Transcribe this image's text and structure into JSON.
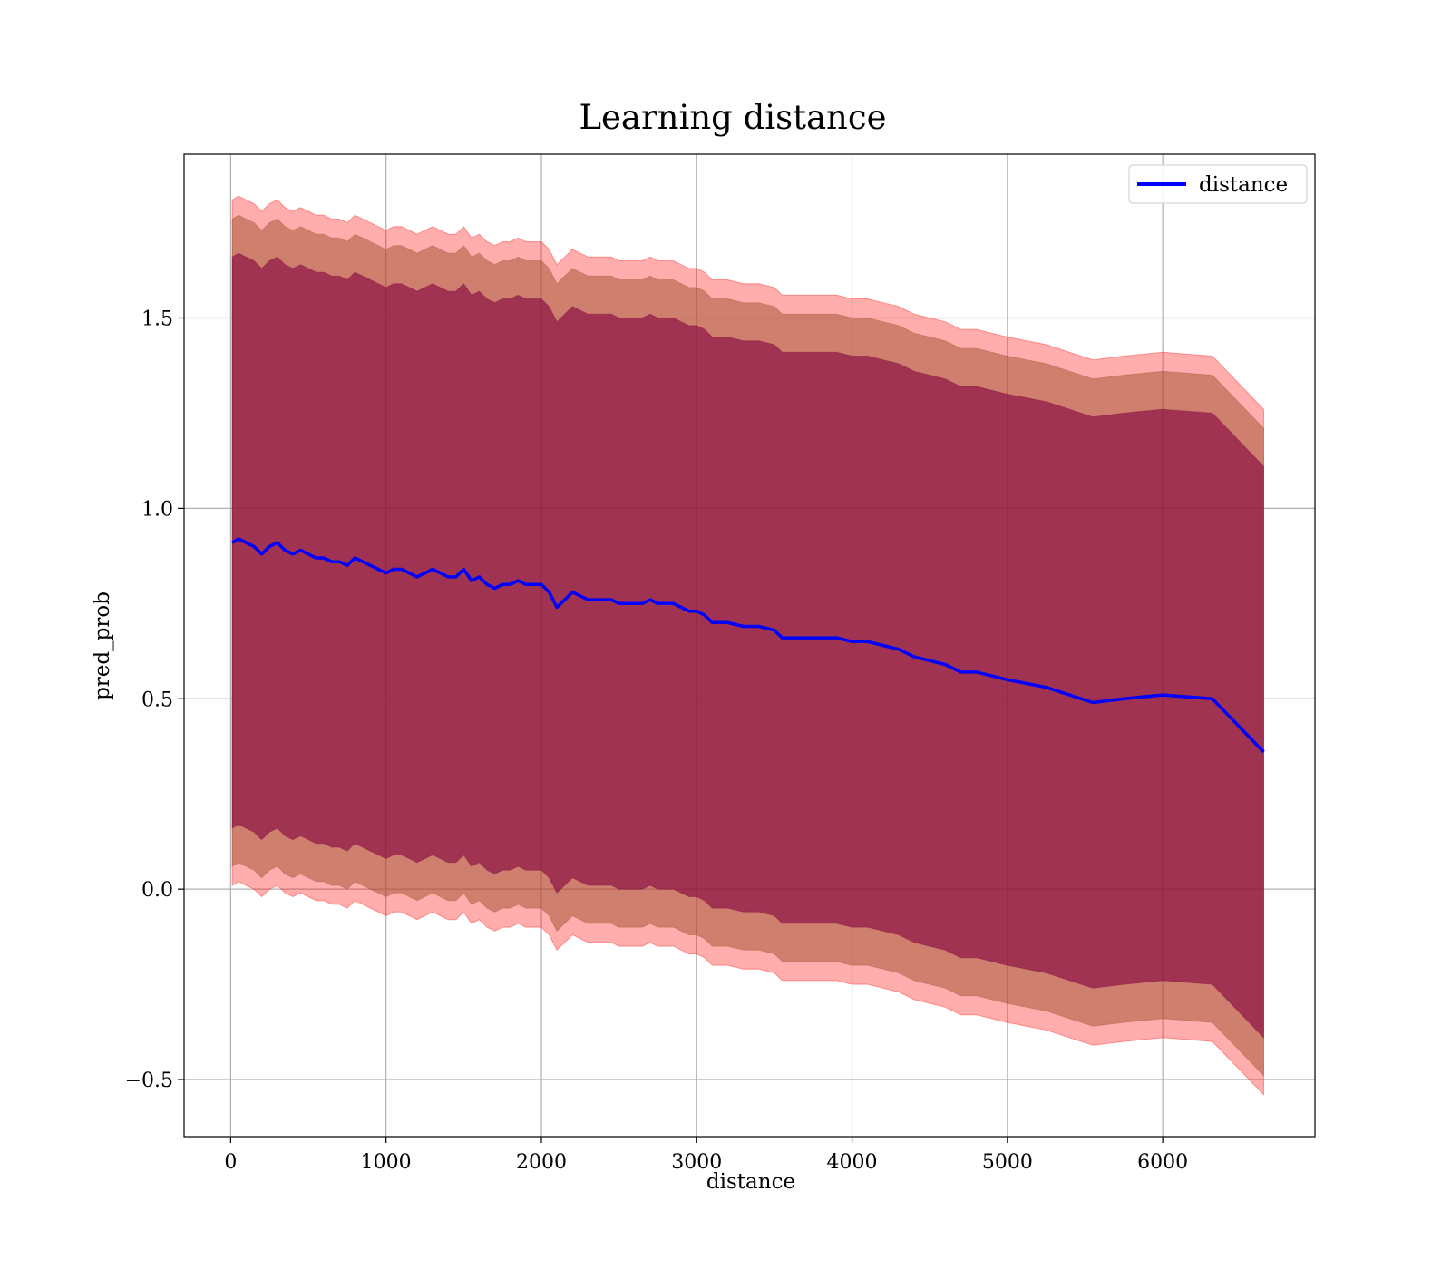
{
  "chart_data": {
    "type": "line",
    "title": "Learning distance",
    "xlabel": "distance",
    "ylabel": "pred_prob",
    "xlim": [
      -300,
      6980
    ],
    "ylim": [
      -0.65,
      1.93
    ],
    "xticks": [
      0,
      1000,
      2000,
      3000,
      4000,
      5000,
      6000
    ],
    "xtick_labels": [
      "0",
      "1000",
      "2000",
      "3000",
      "4000",
      "5000",
      "6000"
    ],
    "yticks": [
      -0.5,
      0.0,
      0.5,
      1.0,
      1.5
    ],
    "ytick_labels": [
      "−0.5",
      "0.0",
      "0.5",
      "1.0",
      "1.5"
    ],
    "grid": true,
    "legend": {
      "position": "top-right",
      "entries": [
        "distance"
      ]
    },
    "colors": {
      "line": "#0000ff",
      "outer_band": "#ff0000",
      "middle_band": "#a0522d",
      "inner_band": "#800040",
      "grid": "#b0b0b0"
    },
    "series": [
      {
        "name": "distance",
        "x": [
          10,
          50,
          100,
          150,
          200,
          250,
          300,
          350,
          400,
          450,
          500,
          550,
          600,
          650,
          700,
          750,
          800,
          850,
          900,
          950,
          1000,
          1050,
          1100,
          1150,
          1200,
          1250,
          1300,
          1350,
          1400,
          1450,
          1500,
          1550,
          1600,
          1650,
          1700,
          1750,
          1800,
          1850,
          1900,
          1950,
          2000,
          2050,
          2100,
          2150,
          2200,
          2250,
          2300,
          2350,
          2400,
          2450,
          2500,
          2550,
          2600,
          2650,
          2700,
          2750,
          2800,
          2850,
          2900,
          2950,
          3000,
          3050,
          3100,
          3150,
          3200,
          3300,
          3400,
          3500,
          3550,
          3600,
          3700,
          3800,
          3900,
          4000,
          4100,
          4200,
          4300,
          4400,
          4500,
          4600,
          4700,
          4800,
          4900,
          5000,
          5250,
          5550,
          5750,
          6000,
          6320,
          6650
        ],
        "values": [
          0.91,
          0.92,
          0.91,
          0.9,
          0.88,
          0.9,
          0.91,
          0.89,
          0.88,
          0.89,
          0.88,
          0.87,
          0.87,
          0.86,
          0.86,
          0.85,
          0.87,
          0.86,
          0.85,
          0.84,
          0.83,
          0.84,
          0.84,
          0.83,
          0.82,
          0.83,
          0.84,
          0.83,
          0.82,
          0.82,
          0.84,
          0.81,
          0.82,
          0.8,
          0.79,
          0.8,
          0.8,
          0.81,
          0.8,
          0.8,
          0.8,
          0.78,
          0.74,
          0.76,
          0.78,
          0.77,
          0.76,
          0.76,
          0.76,
          0.76,
          0.75,
          0.75,
          0.75,
          0.75,
          0.76,
          0.75,
          0.75,
          0.75,
          0.74,
          0.73,
          0.73,
          0.72,
          0.7,
          0.7,
          0.7,
          0.69,
          0.69,
          0.68,
          0.66,
          0.66,
          0.66,
          0.66,
          0.66,
          0.65,
          0.65,
          0.64,
          0.63,
          0.61,
          0.6,
          0.59,
          0.57,
          0.57,
          0.56,
          0.55,
          0.53,
          0.49,
          0.5,
          0.51,
          0.5,
          0.36
        ]
      }
    ],
    "bands": [
      {
        "name": "outer",
        "offset": 0.9,
        "opacity": 0.32
      },
      {
        "name": "middle",
        "offset": 0.85,
        "opacity": 0.5
      },
      {
        "name": "inner",
        "offset": 0.75,
        "opacity": 0.6
      }
    ]
  }
}
